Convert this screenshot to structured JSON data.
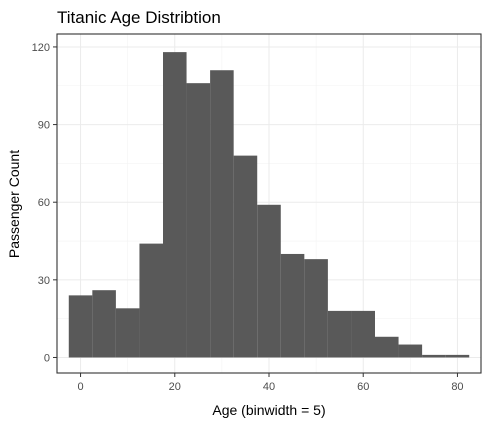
{
  "chart_data": {
    "type": "bar",
    "title": "Titanic Age Distribtion",
    "xlabel": "Age (binwidth = 5)",
    "ylabel": "Passenger Count",
    "binwidth": 5,
    "bins": [
      {
        "x0": -2.5,
        "x1": 2.5,
        "count": 24
      },
      {
        "x0": 2.5,
        "x1": 7.5,
        "count": 26
      },
      {
        "x0": 7.5,
        "x1": 12.5,
        "count": 19
      },
      {
        "x0": 12.5,
        "x1": 17.5,
        "count": 44
      },
      {
        "x0": 17.5,
        "x1": 22.5,
        "count": 118
      },
      {
        "x0": 22.5,
        "x1": 27.5,
        "count": 106
      },
      {
        "x0": 27.5,
        "x1": 32.5,
        "count": 111
      },
      {
        "x0": 32.5,
        "x1": 37.5,
        "count": 78
      },
      {
        "x0": 37.5,
        "x1": 42.5,
        "count": 59
      },
      {
        "x0": 42.5,
        "x1": 47.5,
        "count": 40
      },
      {
        "x0": 47.5,
        "x1": 52.5,
        "count": 38
      },
      {
        "x0": 52.5,
        "x1": 57.5,
        "count": 18
      },
      {
        "x0": 57.5,
        "x1": 62.5,
        "count": 18
      },
      {
        "x0": 62.5,
        "x1": 67.5,
        "count": 8
      },
      {
        "x0": 67.5,
        "x1": 72.5,
        "count": 5
      },
      {
        "x0": 72.5,
        "x1": 77.5,
        "count": 1
      },
      {
        "x0": 77.5,
        "x1": 82.5,
        "count": 1
      }
    ],
    "xlim": [
      -5,
      85
    ],
    "ylim": [
      -6,
      125
    ],
    "x_ticks": [
      0,
      20,
      40,
      60,
      80
    ],
    "y_ticks": [
      0,
      30,
      60,
      90,
      120
    ],
    "grid": true,
    "bar_color": "#595959"
  }
}
